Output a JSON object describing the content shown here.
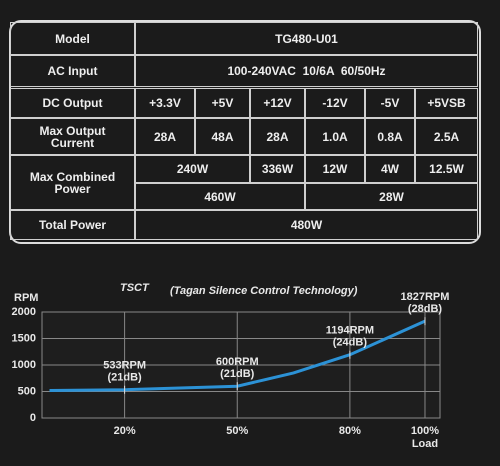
{
  "table": {
    "rows": [
      [
        "Model",
        "TG480-U01"
      ],
      [
        "AC Input",
        "100-240VAC  10/6A  60/50Hz"
      ],
      [
        "DC Output",
        "+3.3V",
        "+5V",
        "+12V",
        "-12V",
        "-5V",
        "+5VSB"
      ],
      [
        "Max Output Current",
        "28A",
        "48A",
        "28A",
        "1.0A",
        "0.8A",
        "2.5A"
      ],
      [
        "Max Combined Power",
        "240W",
        "336W",
        "12W",
        "4W",
        "12.5W"
      ],
      [
        "460W",
        "28W"
      ],
      [
        "Total Power",
        "480W"
      ]
    ]
  },
  "chart_data": {
    "type": "line",
    "title": "TSCT",
    "subtitle": "(Tagan Silence Control Technology)",
    "y_label": "RPM",
    "x_label": "Load",
    "xlim": [
      -2,
      104
    ],
    "ylim": [
      0,
      2000
    ],
    "xticks": [
      {
        "value": 20,
        "label": "20%"
      },
      {
        "value": 50,
        "label": "50%"
      },
      {
        "value": 80,
        "label": "80%"
      },
      {
        "value": 100,
        "label": "100%"
      }
    ],
    "yticks": [
      0,
      500,
      1000,
      1500,
      2000
    ],
    "grid": true,
    "series": [
      {
        "color": "#2c92d6",
        "x": [
          0,
          20,
          50,
          65,
          80,
          100
        ],
        "values": [
          520,
          533,
          600,
          850,
          1194,
          1827
        ],
        "value_labels": [
          null,
          "533RPM",
          "600RPM",
          null,
          "1194RPM",
          "1827RPM"
        ],
        "notes": [
          null,
          "(21dB)",
          "(21dB)",
          null,
          "(24dB)",
          "(28dB)"
        ]
      }
    ]
  }
}
